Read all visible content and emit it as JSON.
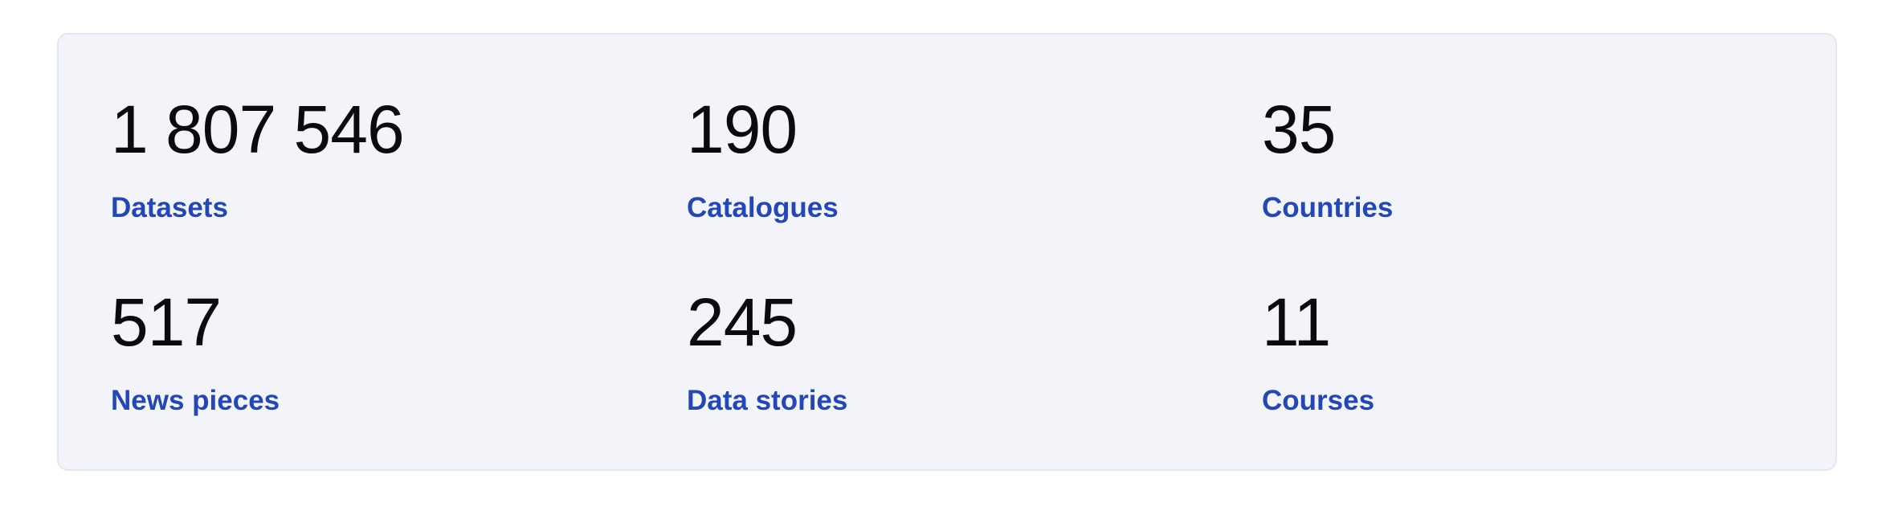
{
  "stats": [
    {
      "value": "1 807 546",
      "label": "Datasets"
    },
    {
      "value": "190",
      "label": "Catalogues"
    },
    {
      "value": "35",
      "label": "Countries"
    },
    {
      "value": "517",
      "label": "News pieces"
    },
    {
      "value": "245",
      "label": "Data stories"
    },
    {
      "value": "11",
      "label": "Courses"
    }
  ],
  "colors": {
    "panel_background": "#f3f4f9",
    "panel_border": "#e5e7ee",
    "value_text": "#0b0b0f",
    "label_link": "#2447b7"
  }
}
